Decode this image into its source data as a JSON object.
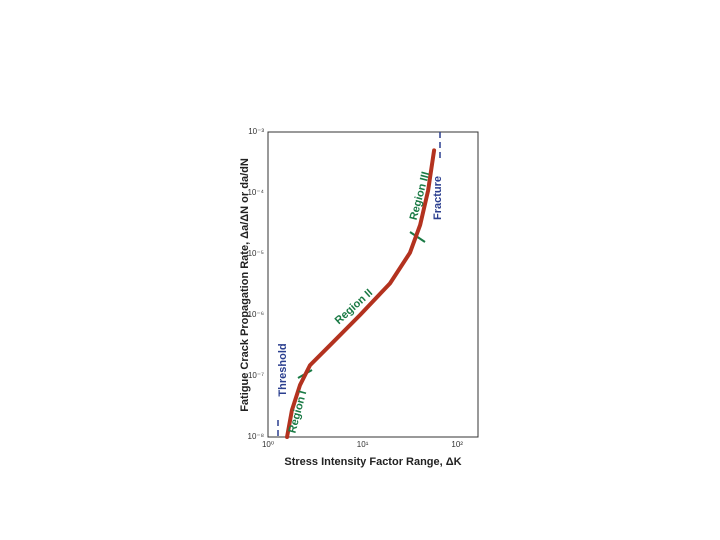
{
  "chart_data": {
    "type": "line",
    "xlabel": "Stress Intensity Factor Range, ΔK",
    "ylabel": "Fatigue Crack Propagation Rate, Δa/ΔN or da/dN",
    "xscale": "log",
    "yscale": "log",
    "grid": true,
    "xlim": [
      1,
      166
    ],
    "ylim": [
      1e-08,
      0.001
    ],
    "xticks": [
      {
        "value": 1,
        "label": "10⁰"
      },
      {
        "value": 10,
        "label": "10¹"
      },
      {
        "value": 100,
        "label": "10²"
      }
    ],
    "yticks": [
      {
        "value": 1e-08,
        "label": "10⁻⁸"
      },
      {
        "value": 1e-07,
        "label": "10⁻⁷"
      },
      {
        "value": 1e-06,
        "label": "10⁻⁶"
      },
      {
        "value": 1e-05,
        "label": "10⁻⁵"
      },
      {
        "value": 0.0001,
        "label": "10⁻⁴"
      },
      {
        "value": 0.001,
        "label": "10⁻³"
      }
    ],
    "series": [
      {
        "color": "#b3321f",
        "x": [
          1.59,
          1.79,
          2.18,
          2.78,
          4.53,
          9.4,
          19.5,
          31.7,
          40.6,
          49.3,
          57
        ],
        "values": [
          1e-08,
          2.75e-08,
          7.1e-08,
          1.5e-07,
          3.2e-07,
          1e-06,
          3.3e-06,
          1.05e-05,
          3e-05,
          0.00011,
          0.0005
        ]
      }
    ],
    "annotations": [
      {
        "text": "Threshold",
        "color": "#2b3f8f"
      },
      {
        "text": "Region I",
        "color": "#1a7a45"
      },
      {
        "text": "Region II",
        "color": "#1a7a45"
      },
      {
        "text": "Region III",
        "color": "#1a7a45"
      },
      {
        "text": "Fracture",
        "color": "#2b3f8f"
      }
    ]
  }
}
